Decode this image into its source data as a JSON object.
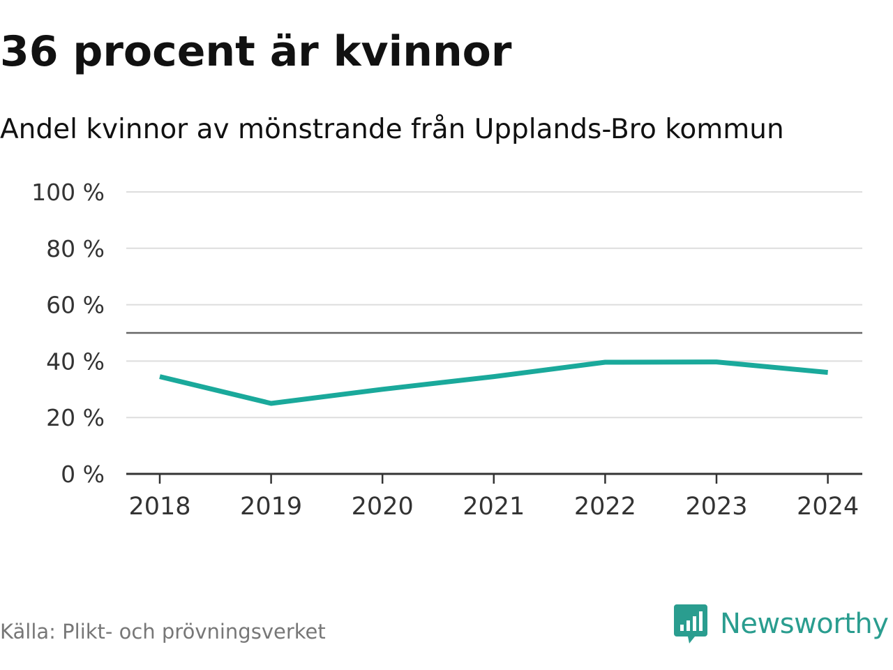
{
  "header": {
    "title": "36 procent är kvinnor",
    "subtitle": "Andel kvinnor av mönstrande från Upplands-Bro kommun"
  },
  "footer": {
    "source": "Källa: Plikt- och prövningsverket",
    "brand": "Newsworthy"
  },
  "colors": {
    "line": "#1aa99b",
    "reference_line": "#666666",
    "grid": "#dddddd",
    "axis": "#333333",
    "brand": "#2a9d8f"
  },
  "chart_data": {
    "type": "line",
    "title": "36 procent är kvinnor",
    "subtitle": "Andel kvinnor av mönstrande från Upplands-Bro kommun",
    "xlabel": "",
    "ylabel": "",
    "categories": [
      "2018",
      "2019",
      "2020",
      "2021",
      "2022",
      "2023",
      "2024"
    ],
    "series": [
      {
        "values": [
          34.5,
          25,
          30,
          34.5,
          39.6,
          39.7,
          36
        ]
      }
    ],
    "reference_line": 50,
    "ylim": [
      0,
      100
    ],
    "yticks": [
      0,
      20,
      40,
      60,
      80,
      100
    ],
    "ytick_labels": [
      "0 %",
      "20 %",
      "40 %",
      "60 %",
      "80 %",
      "100 %"
    ],
    "grid": true,
    "legend": "none"
  }
}
